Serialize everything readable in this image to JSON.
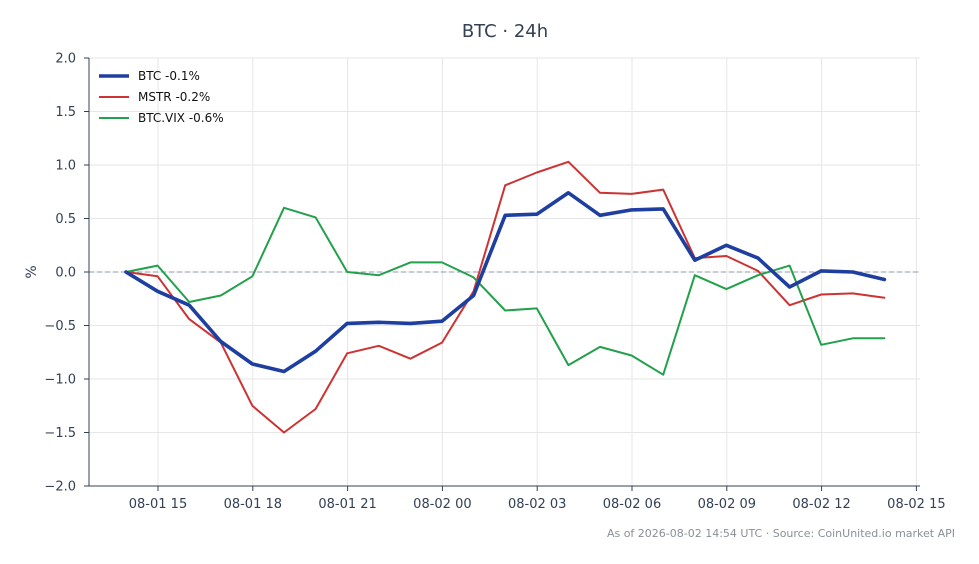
{
  "chart_data": {
    "type": "line",
    "title": "BTC · 24h",
    "ylabel": "%",
    "xlabel": "",
    "ylim": [
      -2.0,
      2.0
    ],
    "yticks": [
      "2.0",
      "1.5",
      "1.0",
      "0.5",
      "0.0",
      "−0.5",
      "−1.0",
      "−1.5",
      "−2.0"
    ],
    "xticks": [
      "08-01 15",
      "08-01 18",
      "08-01 21",
      "08-02 00",
      "08-02 03",
      "08-02 06",
      "08-02 09",
      "08-02 12",
      "08-02 15"
    ],
    "grid": true,
    "legend_placement": "top-left",
    "reference_line": 0.0,
    "series": [
      {
        "name": "BTC -0.1%",
        "color": "#1f3fa0",
        "values": [
          0.0,
          -0.18,
          -0.31,
          -0.65,
          -0.86,
          -0.93,
          -0.74,
          -0.48,
          -0.47,
          -0.48,
          -0.46,
          -0.22,
          0.53,
          0.54,
          0.74,
          0.53,
          0.58,
          0.59,
          0.11,
          0.25,
          0.13,
          -0.14,
          0.01,
          0.0,
          -0.07
        ]
      },
      {
        "name": "MSTR -0.2%",
        "color": "#cc3333",
        "values": [
          0.0,
          -0.04,
          -0.44,
          -0.66,
          -1.25,
          -1.5,
          -1.28,
          -0.76,
          -0.69,
          -0.81,
          -0.66,
          -0.18,
          0.81,
          0.93,
          1.03,
          0.74,
          0.73,
          0.77,
          0.13,
          0.15,
          0.01,
          -0.31,
          -0.21,
          -0.2,
          -0.24
        ]
      },
      {
        "name": "BTC.VIX -0.6%",
        "color": "#22a04b",
        "values": [
          0.0,
          0.06,
          -0.28,
          -0.22,
          -0.04,
          0.6,
          0.51,
          0.0,
          -0.03,
          0.09,
          0.09,
          -0.05,
          -0.36,
          -0.34,
          -0.87,
          -0.7,
          -0.78,
          -0.96,
          -0.03,
          -0.16,
          -0.03,
          0.06,
          -0.68,
          -0.62,
          -0.62
        ]
      }
    ]
  },
  "footer": "As of 2026-08-02 14:54 UTC · Source: CoinUnited.io market API",
  "colors": {
    "reference_line": "#8e99b3",
    "grid": "#e6e6e6",
    "axis": "#334155"
  }
}
